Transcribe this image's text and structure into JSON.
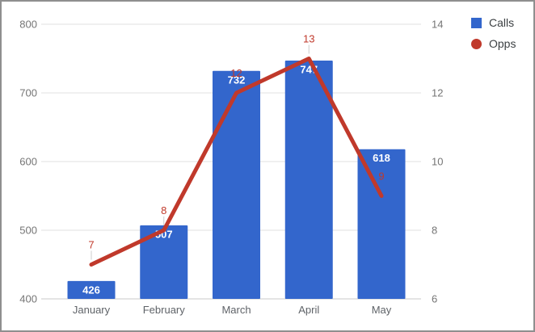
{
  "chart_data": {
    "type": "combo",
    "categories": [
      "January",
      "February",
      "March",
      "April",
      "May"
    ],
    "series": [
      {
        "name": "Calls",
        "type": "bar",
        "axis": "left",
        "color": "#3366cc",
        "values": [
          426,
          507,
          732,
          747,
          618
        ],
        "label_color": "#ffffff",
        "label_position": "inside-top"
      },
      {
        "name": "Opps",
        "type": "line",
        "axis": "right",
        "color": "#c0392b",
        "values": [
          7,
          8,
          12,
          13,
          9
        ],
        "label_color": "#c0392b",
        "label_position": "above"
      }
    ],
    "left_axis": {
      "min": 400,
      "max": 800,
      "ticks": [
        400,
        500,
        600,
        700,
        800
      ]
    },
    "right_axis": {
      "min": 6,
      "max": 14,
      "ticks": [
        6,
        8,
        10,
        12,
        14
      ]
    },
    "grid": true,
    "legend_position": "top-right"
  },
  "legend": {
    "items": [
      {
        "label": "Calls",
        "marker": "square",
        "color": "#3366cc"
      },
      {
        "label": "Opps",
        "marker": "circle",
        "color": "#c0392b"
      }
    ]
  },
  "colors": {
    "axis_text": "#757575",
    "category_text": "#5f6368",
    "grid_line": "#e2e2e2",
    "baseline": "#c9c9c9",
    "leader_line": "#cccccc",
    "legend_text": "#3c4043",
    "frame_border": "#8f8f8f",
    "background": "#ffffff"
  }
}
